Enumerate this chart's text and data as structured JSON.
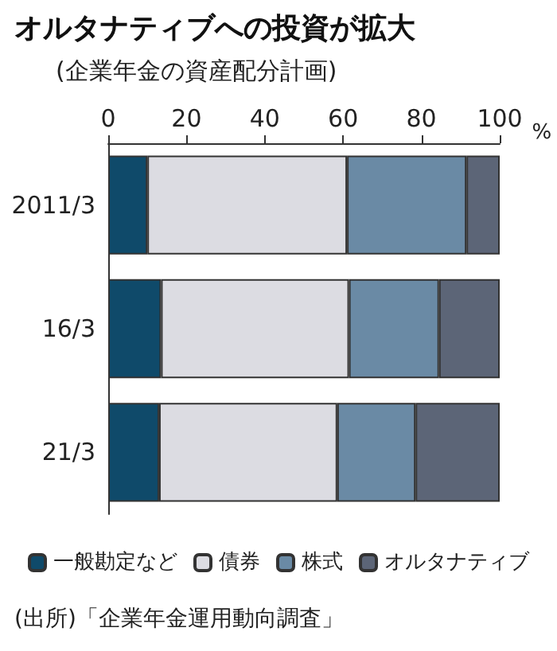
{
  "chart_data": {
    "type": "bar",
    "orientation": "horizontal",
    "stacked": true,
    "title": "オルタナティブへの投資が拡大",
    "subtitle": "(企業年金の資産配分計画)",
    "xlabel": "%",
    "categories": [
      "2011/3",
      "16/3",
      "21/3"
    ],
    "series": [
      {
        "name": "一般勘定など",
        "color": "#0f4a6a",
        "values": [
          10,
          13.5,
          13
        ]
      },
      {
        "name": "債券",
        "color": "#dcdce2",
        "values": [
          51,
          48,
          45.5
        ]
      },
      {
        "name": "株式",
        "color": "#6a8aa5",
        "values": [
          30.5,
          23,
          20
        ]
      },
      {
        "name": "オルタナティブ",
        "color": "#5c6577",
        "values": [
          8.5,
          15.5,
          21.5
        ]
      }
    ],
    "xlim": [
      0,
      100
    ],
    "xticks": [
      0,
      20,
      40,
      60,
      80,
      100
    ],
    "grid": false,
    "legend": "bottom",
    "annotations": [
      "(出所)「企業年金運用動向調査」"
    ]
  }
}
